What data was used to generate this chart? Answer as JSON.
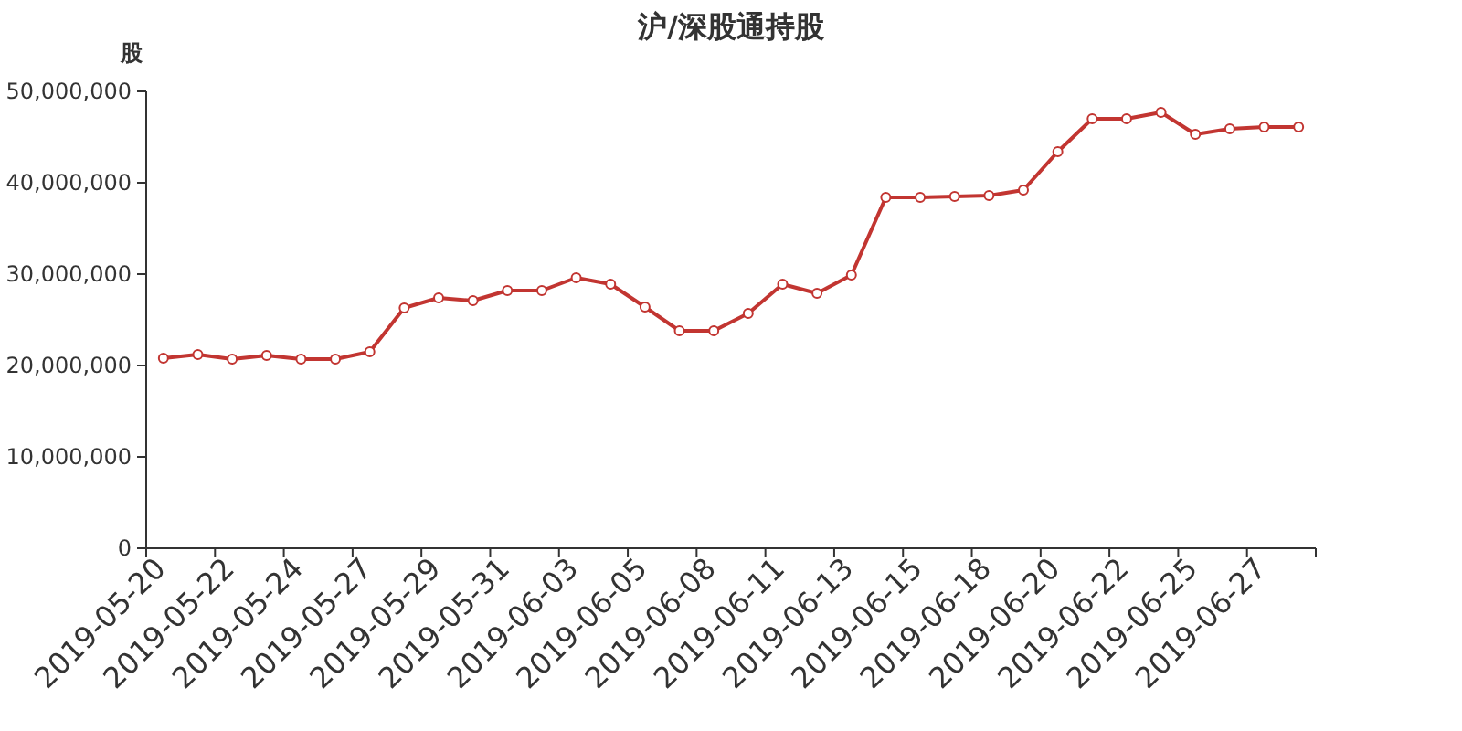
{
  "chart_data": {
    "type": "line",
    "title": "沪/深股通持股",
    "ylabel": "股",
    "categories": [
      "2019-05-20",
      null,
      "2019-05-22",
      null,
      "2019-05-24",
      null,
      "2019-05-27",
      null,
      "2019-05-29",
      null,
      "2019-05-31",
      null,
      "2019-06-03",
      null,
      "2019-06-05",
      null,
      "2019-06-08",
      null,
      "2019-06-11",
      null,
      "2019-06-13",
      null,
      "2019-06-15",
      null,
      "2019-06-18",
      null,
      "2019-06-20",
      null,
      "2019-06-22",
      null,
      "2019-06-25",
      null,
      "2019-06-27",
      null
    ],
    "series": [
      {
        "color": "#c23531",
        "values": [
          20800000,
          21200000,
          20700000,
          21100000,
          20700000,
          20700000,
          21500000,
          26300000,
          27400000,
          27100000,
          28200000,
          28200000,
          29600000,
          28900000,
          26400000,
          23800000,
          23800000,
          25700000,
          28900000,
          27900000,
          29900000,
          38400000,
          38400000,
          38500000,
          38600000,
          39200000,
          43400000,
          47000000,
          47000000,
          47700000,
          45300000,
          45900000,
          46100000,
          46100000
        ]
      }
    ],
    "ylim": [
      0,
      50000000
    ],
    "yticks": [
      {
        "value": 0,
        "label": "0"
      },
      {
        "value": 10000000,
        "label": "10,000,000"
      },
      {
        "value": 20000000,
        "label": "20,000,000"
      },
      {
        "value": 30000000,
        "label": "30,000,000"
      },
      {
        "value": 40000000,
        "label": "40,000,000"
      },
      {
        "value": 50000000,
        "label": "50,000,000"
      }
    ],
    "grid": false,
    "marker": "circle",
    "line_style": "solid"
  }
}
